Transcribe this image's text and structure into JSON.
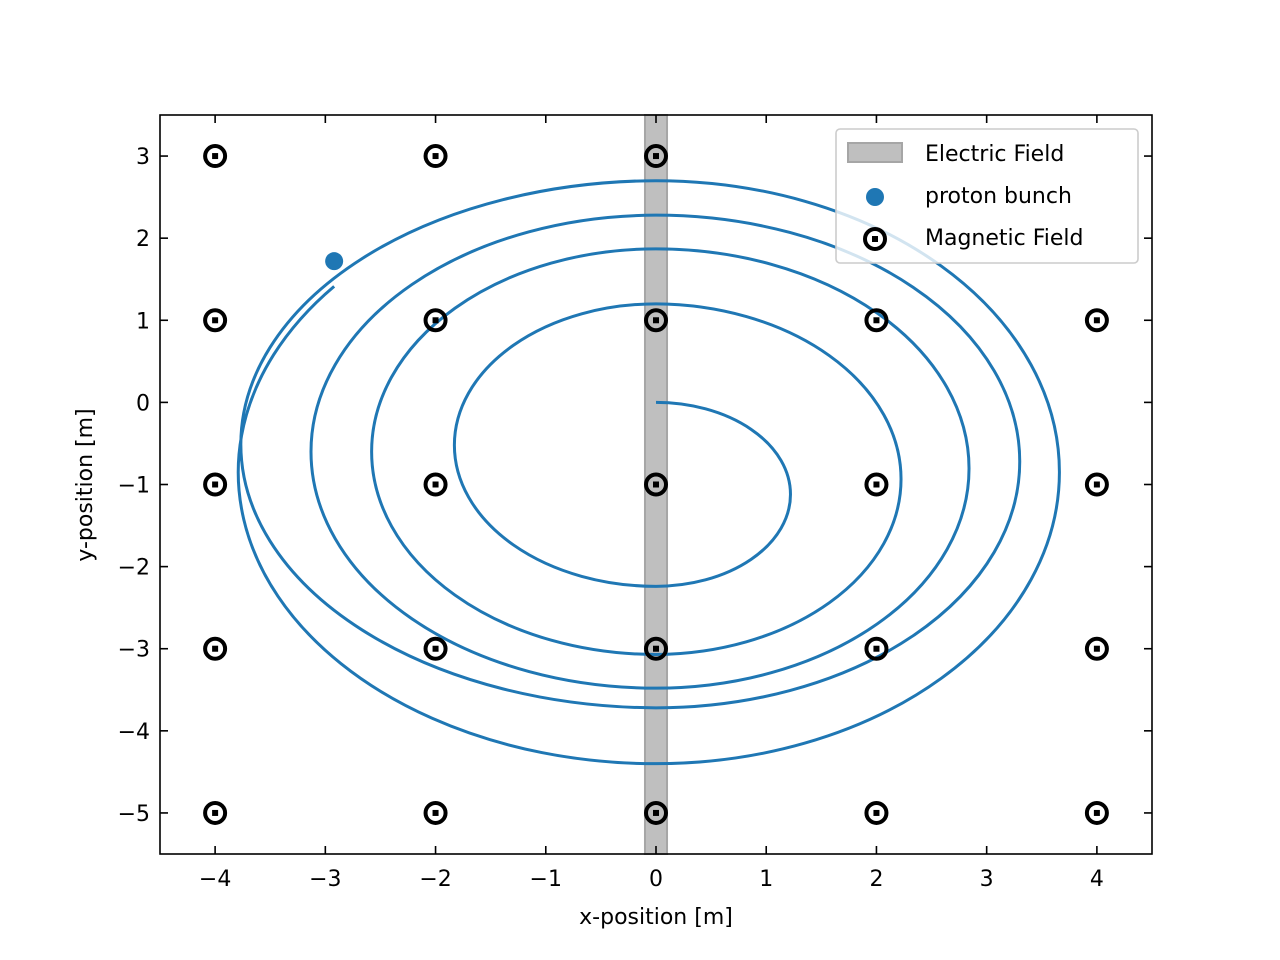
{
  "chart_data": {
    "type": "scatter",
    "xlabel": "x-position [m]",
    "ylabel": "y-position [m]",
    "xlim": [
      -4.5,
      4.5
    ],
    "ylim": [
      -5.5,
      3.5
    ],
    "x_ticks": [
      -4,
      -3,
      -2,
      -1,
      0,
      1,
      2,
      3,
      4
    ],
    "y_ticks": [
      -5,
      -4,
      -3,
      -2,
      -1,
      0,
      1,
      2,
      3
    ],
    "x_tick_labels": [
      "−4",
      "−3",
      "−2",
      "−1",
      "0",
      "1",
      "2",
      "3",
      "4"
    ],
    "y_tick_labels": [
      "−5",
      "−4",
      "−3",
      "−2",
      "−1",
      "0",
      "1",
      "2",
      "3"
    ],
    "grid": false,
    "legend_position": "top-right",
    "electric_field": {
      "name": "Electric Field",
      "x_range": [
        -0.1,
        0.1
      ],
      "color": "#bfbfbf",
      "edge_color": "#a6a6a6"
    },
    "proton_bunch": {
      "name": "proton bunch",
      "x": -2.92,
      "y": 1.72,
      "color": "#1f77b4"
    },
    "magnetic_field": {
      "name": "Magnetic Field",
      "x": [
        -4,
        -2,
        0,
        2,
        4
      ],
      "y": [
        3,
        1,
        -1,
        -3,
        -5
      ],
      "present": [
        [
          true,
          true,
          true,
          false,
          false
        ],
        [
          true,
          true,
          true,
          true,
          true
        ],
        [
          true,
          true,
          true,
          true,
          true
        ],
        [
          true,
          true,
          true,
          true,
          true
        ],
        [
          true,
          true,
          true,
          true,
          true
        ]
      ],
      "color": "#000000"
    },
    "trajectory": {
      "color": "#1f77b4",
      "start": [
        0,
        0
      ],
      "half_turns": [
        {
          "side": "right",
          "y_top": 0.0,
          "y_bottom": -2.24,
          "x_extreme": 1.22
        },
        {
          "side": "left",
          "y_bottom": -2.24,
          "y_top": 1.2,
          "x_extreme": -1.83
        },
        {
          "side": "right",
          "y_top": 1.2,
          "y_bottom": -3.07,
          "x_extreme": 2.24
        },
        {
          "side": "left",
          "y_bottom": -3.07,
          "y_top": 1.87,
          "x_extreme": -2.58
        },
        {
          "side": "right",
          "y_top": 1.87,
          "y_bottom": -3.48,
          "x_extreme": 2.84
        },
        {
          "side": "left",
          "y_bottom": -3.48,
          "y_top": 2.28,
          "x_extreme": -3.13
        },
        {
          "side": "right",
          "y_top": 2.28,
          "y_bottom": -3.72,
          "x_extreme": 3.3
        },
        {
          "side": "left",
          "y_bottom": -3.72,
          "y_top": 2.7,
          "x_extreme": -3.79
        },
        {
          "side": "right",
          "y_top": 2.7,
          "y_bottom": -4.4,
          "x_extreme": 3.66
        }
      ],
      "final_arc": {
        "y_bottom": -4.4,
        "y_top": 2.7,
        "x_extreme": -3.79,
        "end": [
          -2.92,
          1.72
        ]
      }
    }
  }
}
